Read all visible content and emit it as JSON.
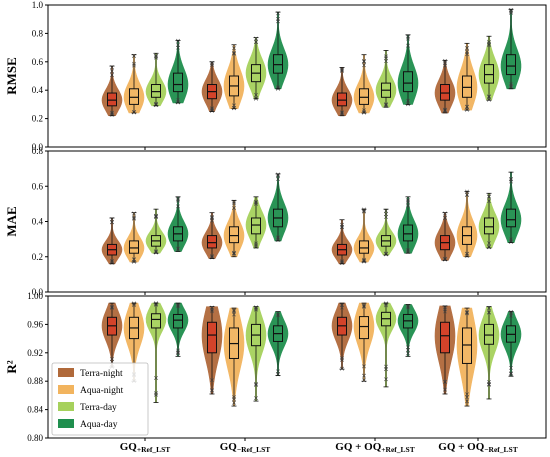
{
  "colors": {
    "Terra-night": "#b0693a",
    "Aqua-night": "#f2b45e",
    "Terra-day": "#a6d15c",
    "Aqua-day": "#1f8f4e",
    "median_overlay": "#e03020",
    "box_stroke": "#111111"
  },
  "chart_data": [
    {
      "type": "violin",
      "ylabel": "RMSE",
      "ylim": [
        0.0,
        1.0
      ],
      "yticks": [
        "0.0",
        "0.2",
        "0.4",
        "0.6",
        "0.8",
        "1.0"
      ],
      "categories": [
        "GQ+Ref_LST",
        "GQ-Ref_LST",
        "GQ+OQ+Ref_LST",
        "GQ+OQ-Ref_LST"
      ],
      "series": [
        {
          "name": "Terra-night",
          "stats": [
            {
              "min": 0.22,
              "q1": 0.29,
              "median": 0.33,
              "q3": 0.38,
              "max": 0.57
            },
            {
              "min": 0.25,
              "q1": 0.34,
              "median": 0.39,
              "q3": 0.44,
              "max": 0.6
            },
            {
              "min": 0.22,
              "q1": 0.29,
              "median": 0.33,
              "q3": 0.38,
              "max": 0.56
            },
            {
              "min": 0.24,
              "q1": 0.33,
              "median": 0.38,
              "q3": 0.44,
              "max": 0.61
            }
          ]
        },
        {
          "name": "Aqua-night",
          "stats": [
            {
              "min": 0.24,
              "q1": 0.3,
              "median": 0.35,
              "q3": 0.41,
              "max": 0.65
            },
            {
              "min": 0.27,
              "q1": 0.36,
              "median": 0.43,
              "q3": 0.5,
              "max": 0.72
            },
            {
              "min": 0.24,
              "q1": 0.3,
              "median": 0.35,
              "q3": 0.41,
              "max": 0.65
            },
            {
              "min": 0.26,
              "q1": 0.35,
              "median": 0.42,
              "q3": 0.5,
              "max": 0.73
            }
          ]
        },
        {
          "name": "Terra-day",
          "stats": [
            {
              "min": 0.29,
              "q1": 0.35,
              "median": 0.39,
              "q3": 0.44,
              "max": 0.66
            },
            {
              "min": 0.34,
              "q1": 0.46,
              "median": 0.52,
              "q3": 0.58,
              "max": 0.77
            },
            {
              "min": 0.28,
              "q1": 0.35,
              "median": 0.4,
              "q3": 0.45,
              "max": 0.68
            },
            {
              "min": 0.33,
              "q1": 0.45,
              "median": 0.51,
              "q3": 0.58,
              "max": 0.78
            }
          ]
        },
        {
          "name": "Aqua-day",
          "stats": [
            {
              "min": 0.31,
              "q1": 0.39,
              "median": 0.44,
              "q3": 0.52,
              "max": 0.75
            },
            {
              "min": 0.41,
              "q1": 0.52,
              "median": 0.58,
              "q3": 0.65,
              "max": 0.95
            },
            {
              "min": 0.3,
              "q1": 0.39,
              "median": 0.45,
              "q3": 0.53,
              "max": 0.79
            },
            {
              "min": 0.41,
              "q1": 0.51,
              "median": 0.57,
              "q3": 0.65,
              "max": 0.97
            }
          ]
        }
      ]
    },
    {
      "type": "violin",
      "ylabel": "MAE",
      "ylim": [
        0.0,
        0.8
      ],
      "yticks": [
        "0.0",
        "0.2",
        "0.4",
        "0.6",
        "0.8"
      ],
      "categories": [
        "GQ+Ref_LST",
        "GQ-Ref_LST",
        "GQ+OQ+Ref_LST",
        "GQ+OQ-Ref_LST"
      ],
      "series": [
        {
          "name": "Terra-night",
          "stats": [
            {
              "min": 0.16,
              "q1": 0.21,
              "median": 0.24,
              "q3": 0.27,
              "max": 0.42
            },
            {
              "min": 0.19,
              "q1": 0.25,
              "median": 0.28,
              "q3": 0.32,
              "max": 0.45
            },
            {
              "min": 0.16,
              "q1": 0.21,
              "median": 0.24,
              "q3": 0.27,
              "max": 0.41
            },
            {
              "min": 0.18,
              "q1": 0.24,
              "median": 0.28,
              "q3": 0.32,
              "max": 0.45
            }
          ]
        },
        {
          "name": "Aqua-night",
          "stats": [
            {
              "min": 0.17,
              "q1": 0.22,
              "median": 0.25,
              "q3": 0.29,
              "max": 0.45
            },
            {
              "min": 0.2,
              "q1": 0.28,
              "median": 0.32,
              "q3": 0.37,
              "max": 0.52
            },
            {
              "min": 0.17,
              "q1": 0.22,
              "median": 0.25,
              "q3": 0.29,
              "max": 0.47
            },
            {
              "min": 0.2,
              "q1": 0.27,
              "median": 0.32,
              "q3": 0.37,
              "max": 0.57
            }
          ]
        },
        {
          "name": "Terra-day",
          "stats": [
            {
              "min": 0.22,
              "q1": 0.26,
              "median": 0.29,
              "q3": 0.32,
              "max": 0.47
            },
            {
              "min": 0.25,
              "q1": 0.33,
              "median": 0.38,
              "q3": 0.42,
              "max": 0.54
            },
            {
              "min": 0.21,
              "q1": 0.26,
              "median": 0.29,
              "q3": 0.32,
              "max": 0.47
            },
            {
              "min": 0.25,
              "q1": 0.33,
              "median": 0.37,
              "q3": 0.42,
              "max": 0.56
            }
          ]
        },
        {
          "name": "Aqua-day",
          "stats": [
            {
              "min": 0.23,
              "q1": 0.29,
              "median": 0.33,
              "q3": 0.37,
              "max": 0.54
            },
            {
              "min": 0.29,
              "q1": 0.37,
              "median": 0.42,
              "q3": 0.47,
              "max": 0.67
            },
            {
              "min": 0.22,
              "q1": 0.29,
              "median": 0.33,
              "q3": 0.38,
              "max": 0.54
            },
            {
              "min": 0.28,
              "q1": 0.37,
              "median": 0.41,
              "q3": 0.47,
              "max": 0.68
            }
          ]
        }
      ]
    },
    {
      "type": "violin",
      "ylabel": "R²",
      "ylim": [
        0.8,
        1.0
      ],
      "yticks": [
        "0.80",
        "0.84",
        "0.88",
        "0.92",
        "0.96",
        "1.00"
      ],
      "categories": [
        "GQ+Ref_LST",
        "GQ-Ref_LST",
        "GQ+OQ+Ref_LST",
        "GQ+OQ-Ref_LST"
      ],
      "legend": {
        "position": "bottom-left",
        "entries": [
          "Terra-night",
          "Aqua-night",
          "Terra-day",
          "Aqua-day"
        ]
      },
      "series": [
        {
          "name": "Terra-night",
          "stats": [
            {
              "min": 0.9,
              "q1": 0.945,
              "median": 0.958,
              "q3": 0.97,
              "max": 0.99
            },
            {
              "min": 0.862,
              "q1": 0.92,
              "median": 0.945,
              "q3": 0.963,
              "max": 0.985
            },
            {
              "min": 0.897,
              "q1": 0.945,
              "median": 0.958,
              "q3": 0.97,
              "max": 0.99
            },
            {
              "min": 0.862,
              "q1": 0.92,
              "median": 0.944,
              "q3": 0.963,
              "max": 0.986
            }
          ]
        },
        {
          "name": "Aqua-night",
          "stats": [
            {
              "min": 0.88,
              "q1": 0.94,
              "median": 0.955,
              "q3": 0.97,
              "max": 0.99
            },
            {
              "min": 0.845,
              "q1": 0.912,
              "median": 0.933,
              "q3": 0.955,
              "max": 0.983
            },
            {
              "min": 0.88,
              "q1": 0.94,
              "median": 0.957,
              "q3": 0.971,
              "max": 0.99
            },
            {
              "min": 0.845,
              "q1": 0.905,
              "median": 0.931,
              "q3": 0.955,
              "max": 0.983
            }
          ]
        },
        {
          "name": "Terra-day",
          "stats": [
            {
              "min": 0.85,
              "q1": 0.955,
              "median": 0.967,
              "q3": 0.975,
              "max": 0.99
            },
            {
              "min": 0.852,
              "q1": 0.93,
              "median": 0.945,
              "q3": 0.96,
              "max": 0.985
            },
            {
              "min": 0.872,
              "q1": 0.958,
              "median": 0.968,
              "q3": 0.977,
              "max": 0.99
            },
            {
              "min": 0.855,
              "q1": 0.932,
              "median": 0.945,
              "q3": 0.96,
              "max": 0.985
            }
          ]
        },
        {
          "name": "Aqua-day",
          "stats": [
            {
              "min": 0.915,
              "q1": 0.955,
              "median": 0.966,
              "q3": 0.974,
              "max": 0.99
            },
            {
              "min": 0.888,
              "q1": 0.936,
              "median": 0.947,
              "q3": 0.958,
              "max": 0.978
            },
            {
              "min": 0.915,
              "q1": 0.955,
              "median": 0.965,
              "q3": 0.974,
              "max": 0.988
            },
            {
              "min": 0.887,
              "q1": 0.935,
              "median": 0.946,
              "q3": 0.958,
              "max": 0.978
            }
          ]
        }
      ]
    }
  ]
}
